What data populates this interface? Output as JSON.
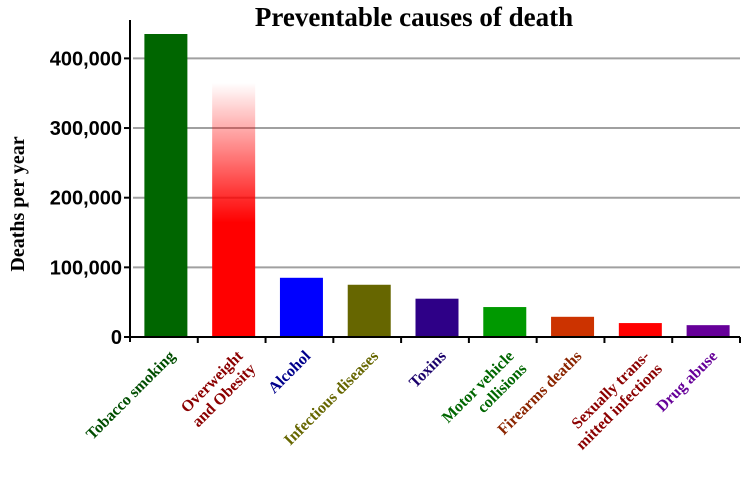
{
  "chart_data": {
    "type": "bar",
    "title": "Preventable causes of death",
    "xlabel": "",
    "ylabel": "Deaths per year",
    "ylim": [
      0,
      435000
    ],
    "yticks": [
      {
        "value": 0,
        "label": "0"
      },
      {
        "value": 100000,
        "label": "100,000"
      },
      {
        "value": 200000,
        "label": "200,000"
      },
      {
        "value": 300000,
        "label": "300,000"
      },
      {
        "value": 400000,
        "label": "400,000"
      }
    ],
    "gridlines": [
      100000,
      200000,
      300000,
      400000
    ],
    "grid_color": "#a0a0a0",
    "categories": [
      {
        "lines": [
          "Tobacco smoking"
        ],
        "value": 435000,
        "color": "#006600",
        "label_color": "#004d00",
        "style": "solid"
      },
      {
        "lines": [
          "Overweight",
          "and Obesity"
        ],
        "value": 365000,
        "color": "#ff0000",
        "label_color": "#8b0000",
        "style": "gradient"
      },
      {
        "lines": [
          "Alcohol"
        ],
        "value": 85000,
        "color": "#0000ff",
        "label_color": "#00008b",
        "style": "solid"
      },
      {
        "lines": [
          "Infectious diseases"
        ],
        "value": 75000,
        "color": "#666600",
        "label_color": "#666600",
        "style": "solid"
      },
      {
        "lines": [
          "Toxins"
        ],
        "value": 55000,
        "color": "#2e0087",
        "label_color": "#1a006b",
        "style": "solid"
      },
      {
        "lines": [
          "Motor vehicle",
          "collisions"
        ],
        "value": 43000,
        "color": "#009900",
        "label_color": "#006600",
        "style": "solid"
      },
      {
        "lines": [
          "Firearms deaths"
        ],
        "value": 29000,
        "color": "#cc3300",
        "label_color": "#8b2500",
        "style": "solid"
      },
      {
        "lines": [
          "Sexually trans-",
          "mitted infections"
        ],
        "value": 20000,
        "color": "#ff0000",
        "label_color": "#8b0000",
        "style": "solid"
      },
      {
        "lines": [
          "Drug abuse"
        ],
        "value": 17000,
        "color": "#660099",
        "label_color": "#660099",
        "style": "solid"
      }
    ]
  }
}
